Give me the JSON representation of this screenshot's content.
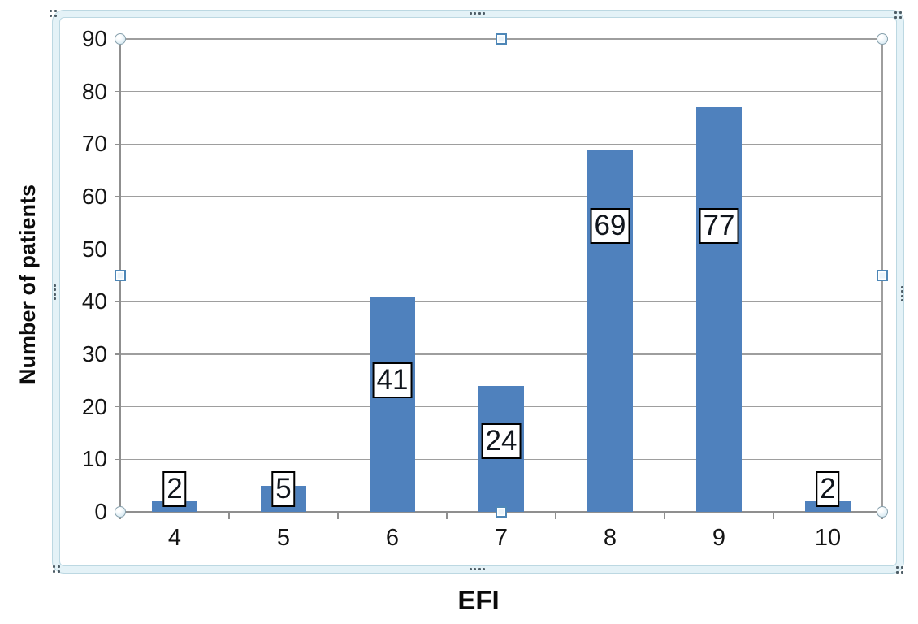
{
  "chart_data": {
    "type": "bar",
    "title": "",
    "xlabel": "EFI",
    "ylabel": "Number of patients",
    "categories": [
      "4",
      "5",
      "6",
      "7",
      "8",
      "9",
      "10"
    ],
    "values": [
      2,
      5,
      41,
      24,
      69,
      77,
      2
    ],
    "data_labels": [
      "2",
      "5",
      "41",
      "24",
      "69",
      "77",
      "2"
    ],
    "ylim": [
      0,
      90
    ],
    "ytick_step": 10,
    "grid": "horizontal-only",
    "legend": "none",
    "bar_color": "#4f81bd",
    "label_box": {
      "fill": "#ffffff",
      "border": "#000000"
    },
    "label_center_values": [
      4.4,
      4.4,
      25,
      13.4,
      54.4,
      54.4,
      4.4
    ]
  },
  "selection": {
    "frame_fill": "#e4f2f7",
    "frame_edge": "#bcd8e2",
    "corner_handle_stroke": "#88a1ad",
    "edge_handle_stroke": "#4e87b7",
    "handle_fill": "#eaf4fb",
    "grip_dot_color": "#4d5d66"
  },
  "colors": {
    "gridline": "#9e9e9e",
    "axis": "#8f8f8f",
    "text": "#141414",
    "background": "#ffffff"
  }
}
